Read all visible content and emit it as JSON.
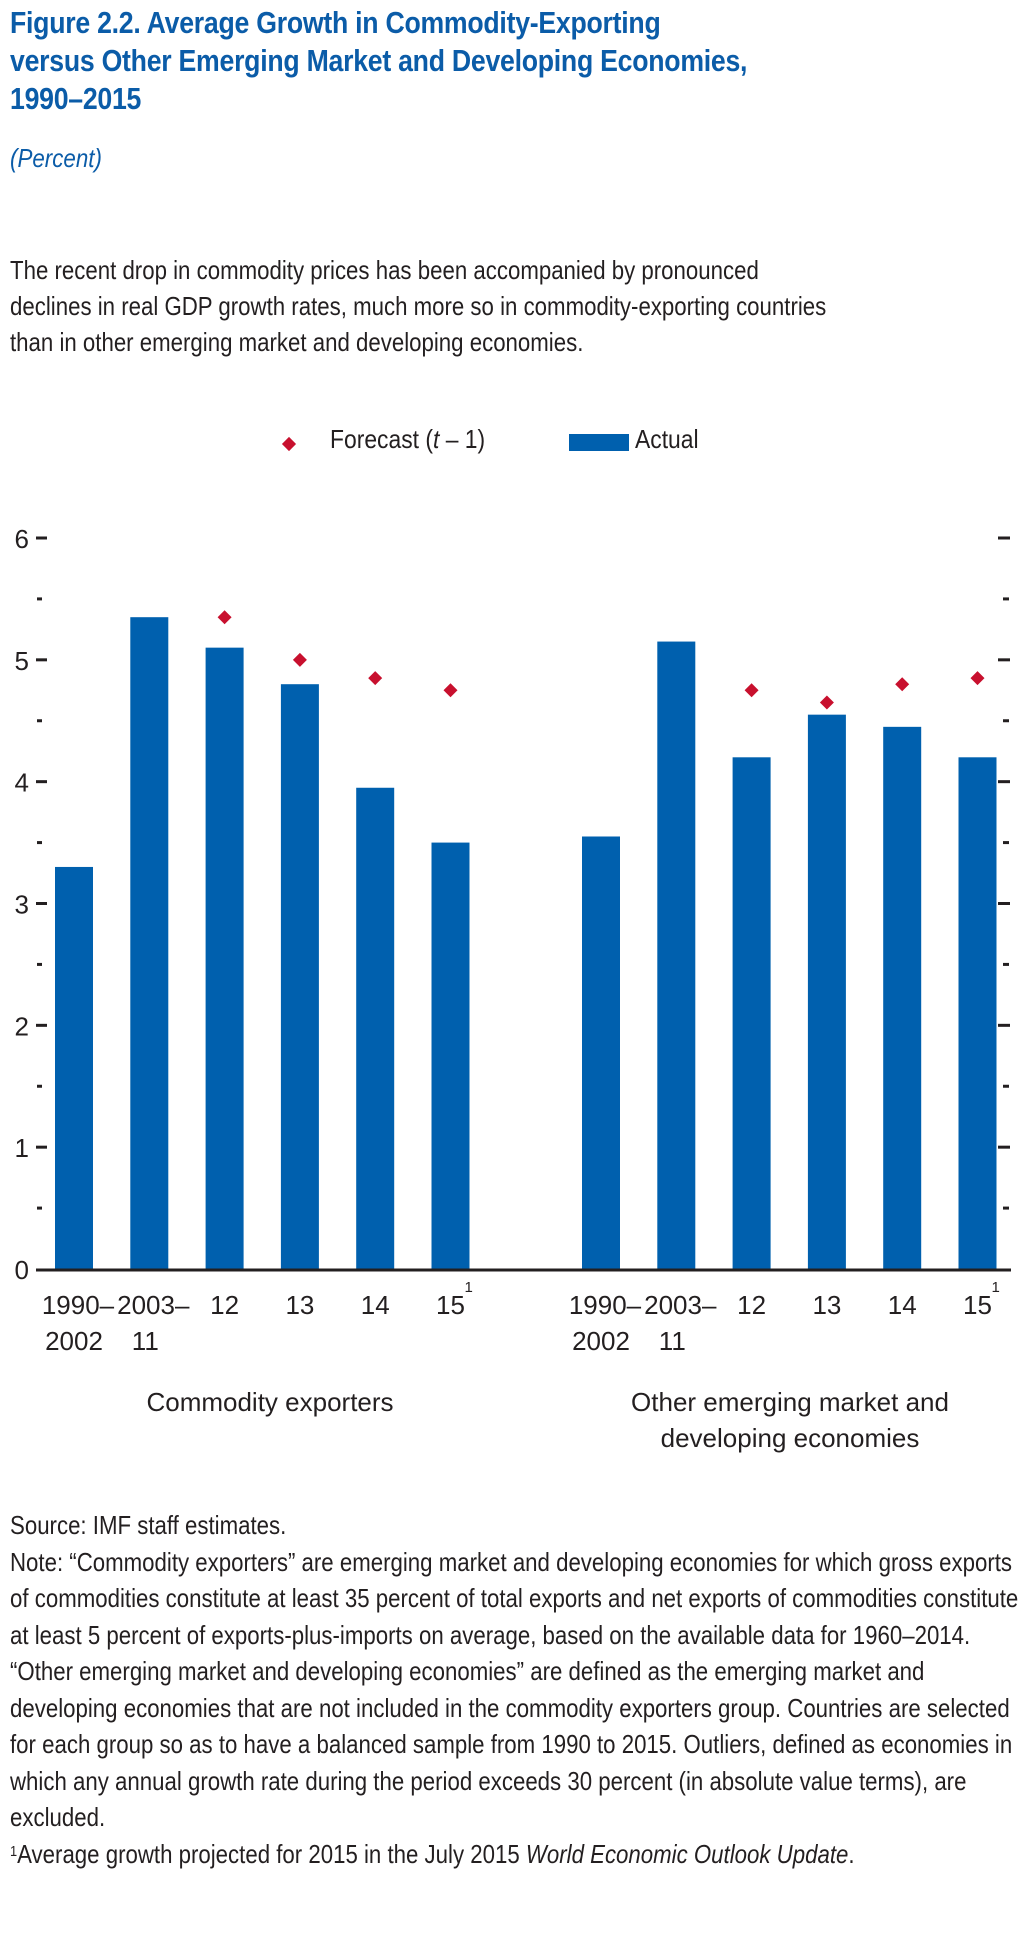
{
  "figure": {
    "title": "Figure 2.2.  Average Growth in Commodity-Exporting versus Other Emerging Market and Developing Economies, 1990–2015",
    "title_lines": [
      "Figure 2.2.  Average Growth in Commodity-Exporting",
      "versus Other Emerging Market and Developing Economies,",
      "1990–2015"
    ],
    "units": "(Percent)",
    "description": "The recent drop in commodity prices has been accompanied by pronounced declines in real GDP growth rates, much more so in commodity-exporting countries than in other emerging market and developing economies.",
    "description_lines": [
      "The recent drop in commodity prices has been accompanied by pronounced",
      "declines in real GDP growth rates, much more so in commodity-exporting countries",
      "than in other emerging market and developing economies."
    ]
  },
  "colors": {
    "title": "#0b5ca8",
    "actual_bar": "#0060ae",
    "forecast_marker": "#c8102e",
    "text": "#231f20"
  },
  "legend": {
    "forecast_label": "Forecast (t – 1)",
    "forecast_prefix": "Forecast (",
    "forecast_var": "t",
    "forecast_suffix": " – 1)",
    "actual_label": "Actual"
  },
  "chart_data": {
    "type": "bar",
    "title": "Average Growth in Commodity-Exporting versus Other Emerging Market and Developing Economies, 1990–2015",
    "ylabel": "Percent",
    "xlabel": "",
    "ylim": [
      0,
      6
    ],
    "yticks": [
      0,
      1,
      2,
      3,
      4,
      5,
      6
    ],
    "minor_yticks": [
      0.5,
      1.5,
      2.5,
      3.5,
      4.5,
      5.5
    ],
    "grid": false,
    "legend_position": "top-center",
    "categories": [
      "1990–2002",
      "2003–11",
      "12",
      "13",
      "14",
      "15¹"
    ],
    "category_lines": [
      [
        "1990–",
        "2002"
      ],
      [
        "2003–",
        "11"
      ],
      [
        "12"
      ],
      [
        "13"
      ],
      [
        "14"
      ],
      [
        "15"
      ]
    ],
    "footnote_marker_category": 5,
    "footnote_marker": "1",
    "groups": [
      {
        "name": "Commodity exporters",
        "label_lines": [
          "Commodity exporters"
        ],
        "series": [
          {
            "name": "Actual",
            "type": "bar",
            "values": [
              3.3,
              5.35,
              5.1,
              4.8,
              3.95,
              3.5
            ]
          },
          {
            "name": "Forecast (t – 1)",
            "type": "marker",
            "values": [
              null,
              null,
              5.35,
              5.0,
              4.85,
              4.75
            ]
          }
        ]
      },
      {
        "name": "Other emerging market and developing economies",
        "label_lines": [
          "Other emerging market and",
          "developing economies"
        ],
        "series": [
          {
            "name": "Actual",
            "type": "bar",
            "values": [
              3.55,
              5.15,
              4.2,
              4.55,
              4.45,
              4.2
            ]
          },
          {
            "name": "Forecast (t – 1)",
            "type": "marker",
            "values": [
              null,
              null,
              4.75,
              4.65,
              4.8,
              4.85
            ]
          }
        ]
      }
    ]
  },
  "notes": {
    "source": "Source: IMF staff estimates.",
    "note": "Note: “Commodity exporters” are emerging market and developing economies for which gross exports of commodities constitute at least 35 percent of total exports and net exports of commodities constitute at least 5 percent of exports-plus-imports on average, based on the available data for 1960–2014. “Other emerging market and developing economies” are defined as the emerging market and developing economies that are not included in the commodity exporters group. Countries are selected for each group so as to have a balanced sample from 1990 to 2015. Outliers, defined as economies in which any annual growth rate during the period exceeds 30 percent (in absolute value terms), are excluded.",
    "footnote_marker": "1",
    "footnote_text": "Average growth projected for 2015 in the July 2015 ",
    "footnote_italic": "World Economic Outlook Update",
    "footnote_end": "."
  }
}
